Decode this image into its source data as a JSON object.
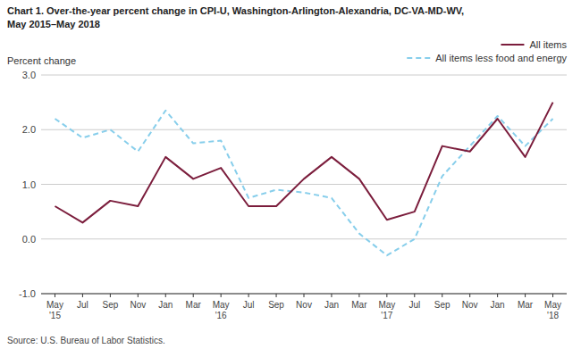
{
  "chart_data": {
    "type": "line",
    "title": "Chart 1. Over-the-year percent change in CPI-U, Washington-Arlington-Alexandria, DC-VA-MD-WV,",
    "subtitle": "May 2015–May 2018",
    "y_label": "Percent change",
    "source": "Source: U.S. Bureau of Labor Statistics.",
    "categories": [
      "May\n'15",
      "Jul",
      "Sep",
      "Nov",
      "Jan",
      "Mar",
      "May\n'16",
      "Jul",
      "Sep",
      "Nov",
      "Jan",
      "Mar",
      "May\n'17",
      "Jul",
      "Sep",
      "Nov",
      "Jan",
      "Mar",
      "May\n'18"
    ],
    "series": [
      {
        "name": "All items",
        "color": "#7B1D3C",
        "line_style": "solid",
        "values": [
          0.6,
          0.3,
          0.7,
          0.6,
          1.5,
          1.1,
          1.3,
          0.6,
          0.6,
          1.1,
          1.5,
          1.1,
          0.35,
          0.5,
          1.7,
          1.6,
          2.2,
          1.5,
          2.5
        ]
      },
      {
        "name": "All items less food and energy",
        "color": "#87CEEB",
        "line_style": "dashed",
        "values": [
          2.2,
          1.85,
          2.0,
          1.6,
          2.35,
          1.75,
          1.8,
          0.75,
          0.9,
          0.85,
          0.75,
          0.1,
          -0.3,
          0.0,
          1.15,
          1.7,
          2.25,
          1.7,
          2.2
        ]
      }
    ],
    "ylim": [
      -1.0,
      3.0
    ],
    "yticks": [
      {
        "value": -1.0,
        "label": "-1.0"
      },
      {
        "value": 0.0,
        "label": "0.0"
      },
      {
        "value": 1.0,
        "label": "1.0"
      },
      {
        "value": 2.0,
        "label": "2.0"
      },
      {
        "value": 3.0,
        "label": "3.0"
      }
    ],
    "grid": true,
    "legend": "top-right"
  }
}
